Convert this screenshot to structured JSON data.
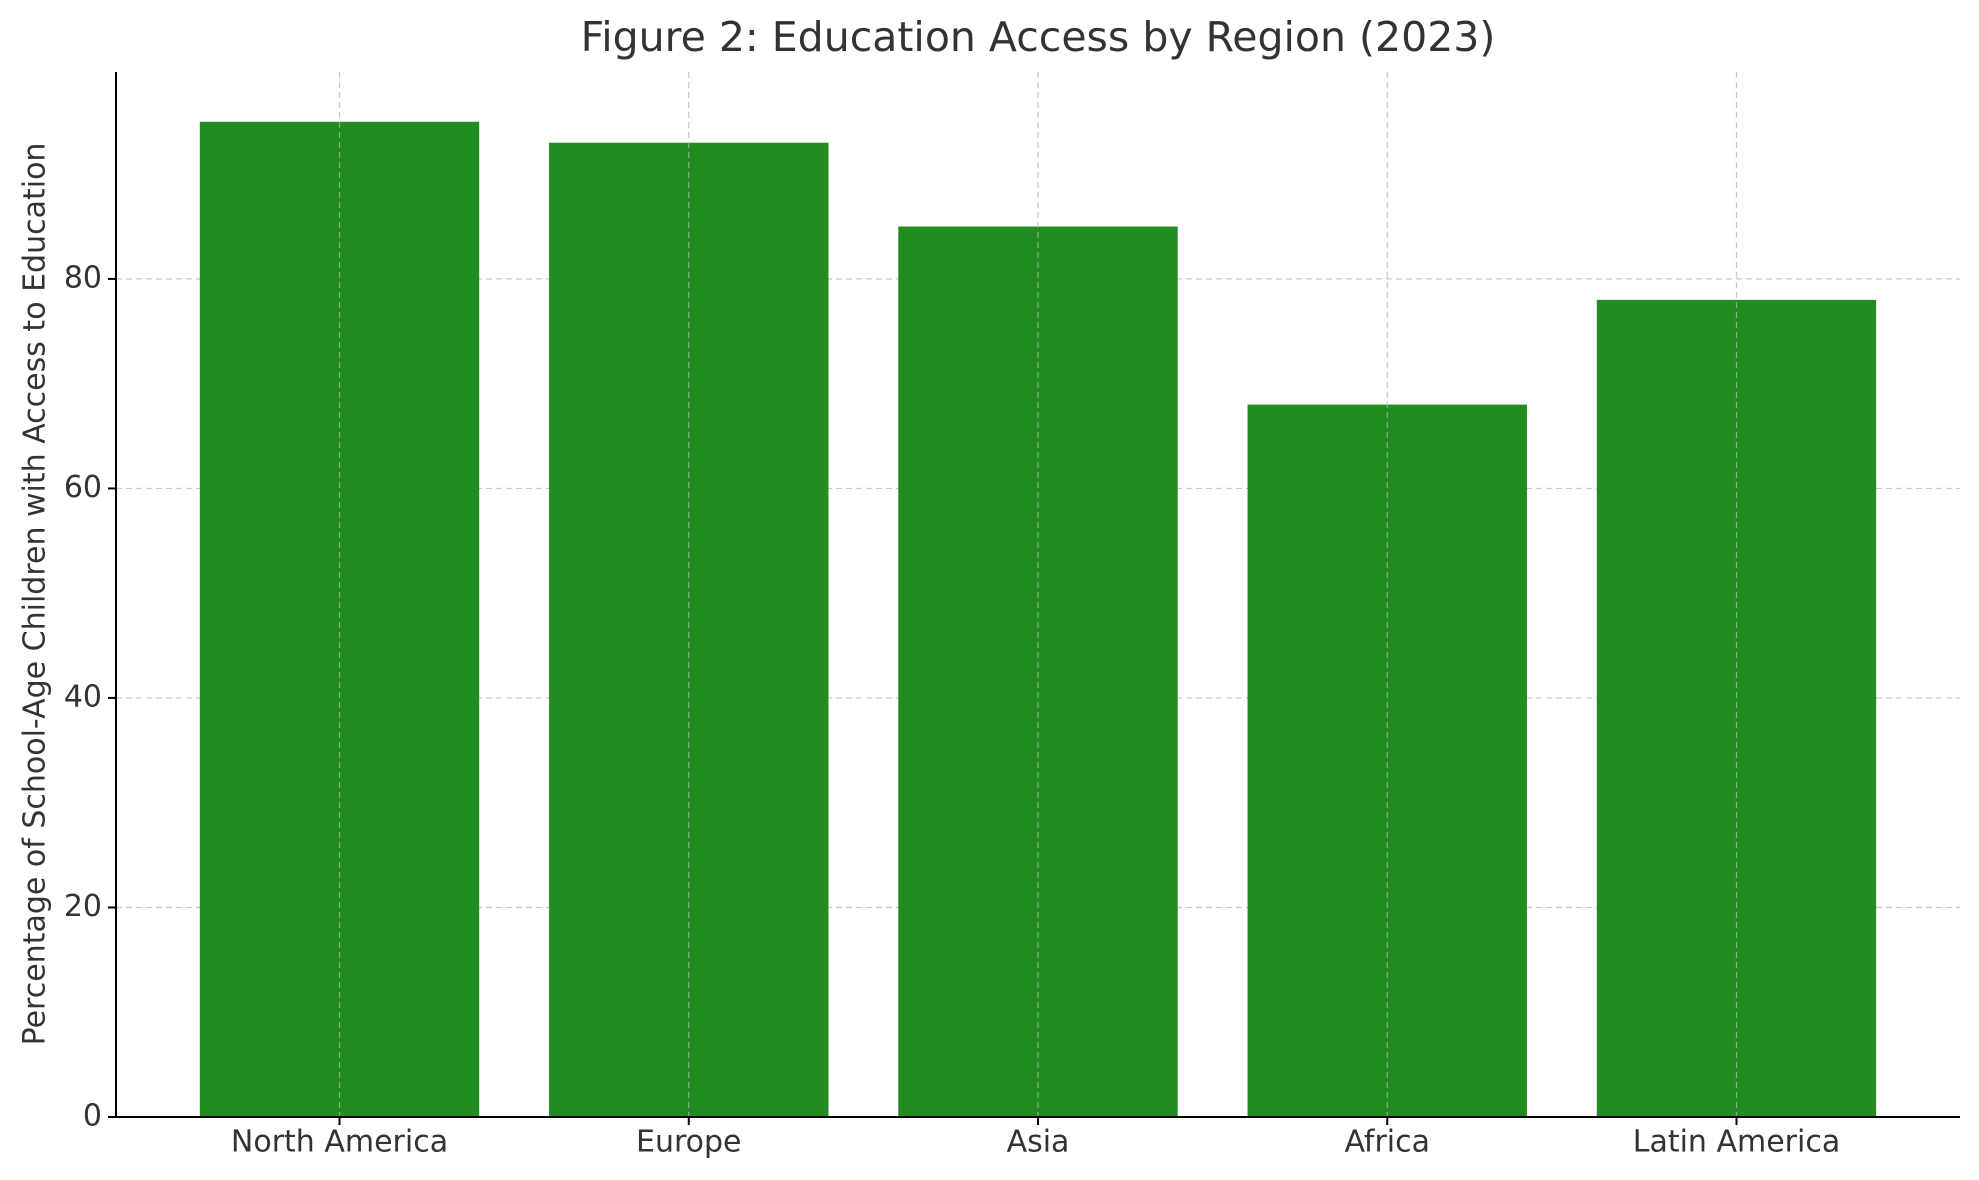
{
  "chart_data": {
    "type": "bar",
    "title": "Figure 2: Education Access by Region (2023)",
    "y_label": "Percentage of School-Age Children with Access to Education",
    "categories": [
      "North America",
      "Europe",
      "Asia",
      "Africa",
      "Latin America"
    ],
    "values": [
      95,
      93,
      85,
      68,
      78
    ],
    "color": "#228b22",
    "ylim": [
      0,
      99.75
    ],
    "yticks": [
      0,
      20,
      40,
      60,
      80
    ],
    "grid": true
  }
}
